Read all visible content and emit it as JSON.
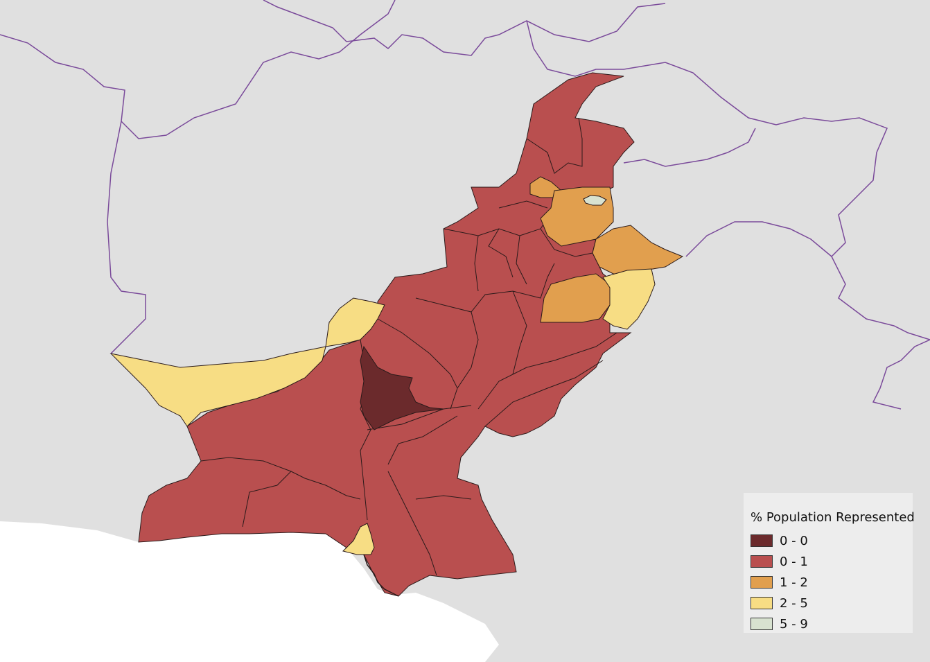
{
  "colors": {
    "background": "#e0e0e0",
    "sea": "#ffffff",
    "border": "#7a4a9a",
    "class_0_0": "#6b2a2c",
    "class_0_1": "#b94f4f",
    "class_1_2": "#e19f4e",
    "class_2_5": "#f7dd84",
    "class_5_9": "#d8e2d0"
  },
  "legend": {
    "title": "% Population Represented",
    "items": [
      {
        "label": "0 - 0",
        "color": "#6b2a2c"
      },
      {
        "label": "0 - 1",
        "color": "#b94f4f"
      },
      {
        "label": "1 - 2",
        "color": "#e19f4e"
      },
      {
        "label": "2 - 5",
        "color": "#f7dd84"
      },
      {
        "label": "5 - 9",
        "color": "#d8e2d0"
      }
    ]
  }
}
